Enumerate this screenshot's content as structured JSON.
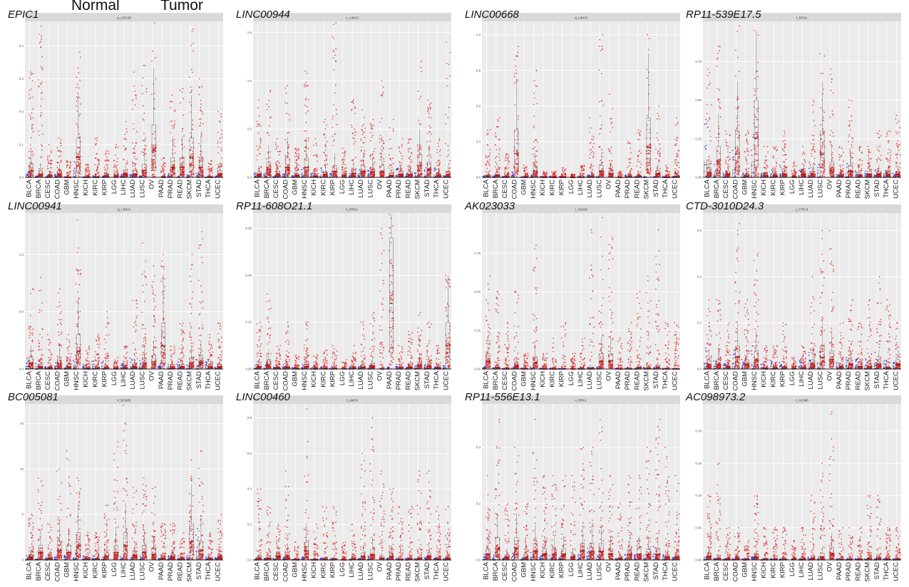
{
  "legend": {
    "normal_label": "Normal",
    "tumor_label": "Tumor",
    "normal_color": "#2222cc",
    "tumor_color": "#dd1111"
  },
  "cancers": [
    "BLCA",
    "BRCA",
    "CESC",
    "COAD",
    "GBM",
    "HNSC",
    "KICH",
    "KIRC",
    "KIRP",
    "LGG",
    "LIHC",
    "LUAD",
    "LUSC",
    "OV",
    "PAAD",
    "PRAD",
    "READ",
    "SKCM",
    "STAD",
    "THCA",
    "UCEC"
  ],
  "chart_data": [
    {
      "type": "scatter",
      "gene": "EPIC1",
      "strip": "a_LOC28",
      "ylim": [
        0,
        0.47
      ],
      "yticks": [
        {
          "v": 0,
          "t": "0.0"
        },
        {
          "v": 0.1,
          "t": "0.1"
        },
        {
          "v": 0.2,
          "t": "0.2"
        },
        {
          "v": 0.3,
          "t": "0.3"
        },
        {
          "v": 0.4,
          "t": "0.4"
        }
      ],
      "tumor_median": [
        0.02,
        0.01,
        0.005,
        0.01,
        0,
        0.06,
        0.001,
        0.001,
        0.005,
        0.005,
        0.01,
        0.01,
        0.02,
        0.08,
        0.001,
        0.03,
        0.03,
        0.06,
        0.03,
        0.001,
        0.01
      ],
      "tumor_max": [
        0.32,
        0.46,
        0.1,
        0.12,
        0.05,
        0.38,
        0.04,
        0.12,
        0.08,
        0.1,
        0.17,
        0.32,
        0.34,
        0.47,
        0.06,
        0.25,
        0.27,
        0.45,
        0.3,
        0.05,
        0.2
      ],
      "normal_max": [
        0.02,
        0.005,
        0.005,
        0.01,
        0.002,
        0.05,
        0.003,
        0.005,
        0.005,
        0,
        0.01,
        0.01,
        0.005,
        0,
        0,
        0.02,
        0.005,
        0.01,
        0.02,
        0.005,
        0.005
      ]
    },
    {
      "type": "scatter",
      "gene": "LINC00944",
      "strip": "c_LINC0",
      "ylim": [
        0,
        1.6
      ],
      "yticks": [
        {
          "v": 0,
          "t": "0.0"
        },
        {
          "v": 0.5,
          "t": "0.5"
        },
        {
          "v": 1.0,
          "t": "1.0"
        },
        {
          "v": 1.5,
          "t": "1.5"
        }
      ],
      "tumor_median": [
        0.03,
        0.08,
        0.03,
        0.1,
        0.02,
        0.1,
        0.01,
        0.03,
        0.06,
        0.02,
        0.04,
        0.06,
        0.05,
        0.06,
        0.02,
        0.03,
        0.03,
        0.12,
        0.08,
        0.02,
        0.03
      ],
      "tumor_max": [
        0.8,
        0.9,
        0.4,
        0.95,
        0.3,
        1.1,
        0.4,
        0.6,
        1.6,
        0.3,
        0.8,
        0.7,
        0.6,
        1.0,
        0.6,
        0.4,
        0.4,
        1.2,
        0.8,
        0.4,
        1.4
      ],
      "normal_max": [
        0.05,
        0.05,
        0.02,
        0.1,
        0.02,
        0.1,
        0.05,
        0.1,
        0.1,
        0,
        0.05,
        0.1,
        0.1,
        0,
        0.01,
        0.1,
        0.05,
        0.05,
        0.1,
        0.1,
        0.02
      ]
    },
    {
      "type": "scatter",
      "gene": "LINC00668",
      "strip": "d_LINC0",
      "ylim": [
        0,
        1.3
      ],
      "yticks": [
        {
          "v": 0,
          "t": "0.0"
        },
        {
          "v": 0.3,
          "t": "0.3"
        },
        {
          "v": 0.6,
          "t": "0.6"
        },
        {
          "v": 0.9,
          "t": "0.9"
        },
        {
          "v": 1.2,
          "t": "1.2"
        }
      ],
      "tumor_median": [
        0.01,
        0.02,
        0.01,
        0.2,
        0.005,
        0.05,
        0.001,
        0.001,
        0.001,
        0.001,
        0.002,
        0.01,
        0.05,
        0.03,
        0.001,
        0.01,
        0.01,
        0.25,
        0.03,
        0.001,
        0.01
      ],
      "tumor_max": [
        0.4,
        0.5,
        0.2,
        1.1,
        0.1,
        0.9,
        0.05,
        0.05,
        0.08,
        0.03,
        0.1,
        0.5,
        1.2,
        0.7,
        0.05,
        0.3,
        0.4,
        1.2,
        0.6,
        0.1,
        0.5
      ],
      "normal_max": [
        0.02,
        0.02,
        0.01,
        0.05,
        0.01,
        0.03,
        0.01,
        0.01,
        0.01,
        0,
        0.01,
        0.02,
        0.02,
        0,
        0,
        0.02,
        0.02,
        0.01,
        0.03,
        0.01,
        0.01
      ]
    },
    {
      "type": "scatter",
      "gene": "RP11-539E17.5",
      "strip": "f_RP11-",
      "ylim": [
        0,
        1.0
      ],
      "yticks": [
        {
          "v": 0,
          "t": "0.00"
        },
        {
          "v": 0.25,
          "t": "0.25"
        },
        {
          "v": 0.5,
          "t": "0.50"
        },
        {
          "v": 0.75,
          "t": "0.75"
        }
      ],
      "tumor_median": [
        0.03,
        0.1,
        0.02,
        0.15,
        0.01,
        0.25,
        0.01,
        0.01,
        0.02,
        0.005,
        0.02,
        0.02,
        0.15,
        0.05,
        0.01,
        0.04,
        0.01,
        0.02,
        0.02,
        0.02,
        0.02
      ],
      "tumor_max": [
        0.7,
        0.85,
        0.3,
        0.98,
        0.3,
        0.95,
        0.2,
        0.2,
        0.3,
        0.1,
        0.2,
        0.5,
        0.8,
        0.7,
        0.2,
        0.5,
        0.2,
        0.2,
        0.3,
        0.3,
        0.4
      ],
      "normal_max": [
        0.4,
        0.1,
        0.05,
        0.2,
        0.05,
        0.4,
        0.05,
        0.05,
        0.1,
        0,
        0.05,
        0.1,
        0.1,
        0,
        0.02,
        0.1,
        0.05,
        0.05,
        0.05,
        0.05,
        0.05
      ]
    },
    {
      "type": "scatter",
      "gene": "LINC00941",
      "strip": "g_LINC0",
      "ylim": [
        0,
        1.35
      ],
      "yticks": [
        {
          "v": 0,
          "t": "0.0"
        },
        {
          "v": 0.5,
          "t": "0.5"
        },
        {
          "v": 1.0,
          "t": "1.0"
        }
      ],
      "tumor_median": [
        0.05,
        0.02,
        0.01,
        0.05,
        0.02,
        0.15,
        0.005,
        0.01,
        0.01,
        0.005,
        0.01,
        0.02,
        0.05,
        0.06,
        0.2,
        0.01,
        0.02,
        0.05,
        0.06,
        0.02,
        0.02
      ],
      "tumor_max": [
        0.7,
        0.8,
        0.3,
        0.7,
        0.3,
        1.3,
        0.2,
        0.3,
        0.5,
        0.1,
        0.2,
        0.6,
        1.1,
        0.9,
        1.0,
        0.2,
        0.4,
        1.0,
        1.2,
        0.3,
        0.4
      ],
      "normal_max": [
        0.1,
        0.05,
        0.03,
        0.1,
        0.03,
        0.15,
        0.05,
        0.08,
        0.1,
        0,
        0.05,
        0.1,
        0.1,
        0,
        0.05,
        0.05,
        0.1,
        0.05,
        0.1,
        0.1,
        0.03
      ]
    },
    {
      "type": "scatter",
      "gene": "RP11-608O21.1",
      "strip": "h_RP11-",
      "ylim": [
        0,
        0.33
      ],
      "yticks": [
        {
          "v": 0,
          "t": "0.00"
        },
        {
          "v": 0.1,
          "t": "0.10"
        },
        {
          "v": 0.2,
          "t": "0.20"
        },
        {
          "v": 0.3,
          "t": "0.30"
        }
      ],
      "tumor_median": [
        0.005,
        0.01,
        0.002,
        0.004,
        0.001,
        0.005,
        0.001,
        0.001,
        0.001,
        0.001,
        0.002,
        0.004,
        0.006,
        0.001,
        0.14,
        0.002,
        0.004,
        0.008,
        0.006,
        0.002,
        0.05
      ],
      "tumor_max": [
        0.1,
        0.16,
        0.05,
        0.1,
        0.03,
        0.1,
        0.03,
        0.04,
        0.05,
        0.02,
        0.05,
        0.1,
        0.12,
        0.3,
        0.33,
        0.05,
        0.08,
        0.12,
        0.1,
        0.05,
        0.2
      ],
      "normal_max": [
        0.01,
        0.01,
        0.005,
        0.01,
        0.005,
        0.01,
        0.005,
        0.005,
        0.005,
        0,
        0.005,
        0.01,
        0.01,
        0,
        0.005,
        0.01,
        0.005,
        0.01,
        0.01,
        0.005,
        0.01
      ]
    },
    {
      "type": "scatter",
      "gene": "AK023033",
      "strip": "i_AK023",
      "ylim": [
        0,
        1.0
      ],
      "yticks": [
        {
          "v": 0,
          "t": "0.00"
        },
        {
          "v": 0.25,
          "t": "0.25"
        },
        {
          "v": 0.5,
          "t": "0.50"
        },
        {
          "v": 0.75,
          "t": "0.75"
        }
      ],
      "tumor_median": [
        0.05,
        0.01,
        0.002,
        0.02,
        0.002,
        0.04,
        0.001,
        0.001,
        0.002,
        0.001,
        0.002,
        0.005,
        0.05,
        0.05,
        0.001,
        0.002,
        0.01,
        0.005,
        0.01,
        0.002,
        0.002
      ],
      "tumor_max": [
        0.6,
        0.5,
        0.3,
        0.5,
        0.1,
        0.8,
        0.1,
        0.2,
        0.3,
        0.1,
        0.2,
        0.9,
        0.98,
        0.85,
        0.2,
        0.3,
        0.5,
        0.6,
        0.9,
        0.3,
        0.3
      ],
      "normal_max": [
        0.02,
        0.01,
        0.005,
        0.01,
        0.005,
        0.02,
        0.005,
        0.005,
        0.005,
        0,
        0.005,
        0.01,
        0.02,
        0,
        0.005,
        0.01,
        0.005,
        0.01,
        0.01,
        0.005,
        0.005
      ]
    },
    {
      "type": "scatter",
      "gene": "CTD-3010D24.3",
      "strip": "j_CTD-3",
      "ylim": [
        0,
        0.67
      ],
      "yticks": [
        {
          "v": 0,
          "t": "0.0"
        },
        {
          "v": 0.2,
          "t": "0.2"
        },
        {
          "v": 0.4,
          "t": "0.4"
        },
        {
          "v": 0.6,
          "t": "0.6"
        }
      ],
      "tumor_median": [
        0.02,
        0.02,
        0.01,
        0.05,
        0.02,
        0.04,
        0.002,
        0.005,
        0.005,
        0.002,
        0.005,
        0.02,
        0.05,
        0.04,
        0.01,
        0.02,
        0.01,
        0.01,
        0.02,
        0.005,
        0.02
      ],
      "tumor_max": [
        0.3,
        0.3,
        0.2,
        0.63,
        0.3,
        0.5,
        0.1,
        0.1,
        0.2,
        0.05,
        0.1,
        0.4,
        0.6,
        0.6,
        0.2,
        0.3,
        0.2,
        0.3,
        0.4,
        0.3,
        0.2
      ],
      "normal_max": [
        0.1,
        0.05,
        0.03,
        0.1,
        0.05,
        0.1,
        0.03,
        0.05,
        0.05,
        0,
        0.05,
        0.1,
        0.1,
        0,
        0.03,
        0.05,
        0.05,
        0.05,
        0.1,
        0.05,
        0.03
      ]
    },
    {
      "type": "scatter",
      "gene": "BC005081",
      "strip": "k_BC005",
      "ylim": [
        0,
        17
      ],
      "yticks": [
        {
          "v": 0,
          "t": "0"
        },
        {
          "v": 5,
          "t": "5"
        },
        {
          "v": 10,
          "t": "10"
        },
        {
          "v": 15,
          "t": "15"
        }
      ],
      "tumor_median": [
        0.3,
        0.8,
        0.2,
        1.0,
        0.8,
        1.5,
        0.1,
        0.1,
        0.4,
        0.8,
        1.5,
        0.5,
        0.8,
        0.6,
        0.2,
        0.3,
        0.1,
        2.0,
        1.0,
        0.1,
        0.3
      ],
      "tumor_max": [
        5,
        9,
        4,
        10,
        12,
        9,
        3,
        3,
        6,
        13,
        17,
        8,
        9,
        8,
        4,
        4,
        3,
        11,
        12,
        3,
        5
      ],
      "normal_max": [
        0.5,
        0.5,
        0.3,
        0.5,
        0.5,
        1.0,
        0.5,
        0.5,
        0.5,
        0,
        0.5,
        0.3,
        0.5,
        0,
        0.3,
        0.5,
        0.5,
        0.5,
        3.5,
        0.5,
        0.3
      ]
    },
    {
      "type": "scatter",
      "gene": "LINC00460",
      "strip": "l_LINC0",
      "ylim": [
        0,
        0.87
      ],
      "yticks": [
        {
          "v": 0,
          "t": "0.0"
        },
        {
          "v": 0.2,
          "t": "0.2"
        },
        {
          "v": 0.4,
          "t": "0.4"
        },
        {
          "v": 0.6,
          "t": "0.6"
        },
        {
          "v": 0.8,
          "t": "0.8"
        }
      ],
      "tumor_median": [
        0.01,
        0.01,
        0.02,
        0.02,
        0.002,
        0.05,
        0.002,
        0.005,
        0.005,
        0.001,
        0.005,
        0.02,
        0.03,
        0.01,
        0.02,
        0.002,
        0.005,
        0.01,
        0.02,
        0.005,
        0.01
      ],
      "tumor_max": [
        0.4,
        0.3,
        0.2,
        0.5,
        0.1,
        0.85,
        0.2,
        0.3,
        0.3,
        0.1,
        0.2,
        0.6,
        0.8,
        0.5,
        0.4,
        0.3,
        0.3,
        0.5,
        0.5,
        0.3,
        0.3
      ],
      "normal_max": [
        0.01,
        0.01,
        0.01,
        0.02,
        0.005,
        0.02,
        0.005,
        0.01,
        0.01,
        0,
        0.01,
        0.01,
        0.02,
        0,
        0.01,
        0.01,
        0.01,
        0.01,
        0.02,
        0.01,
        0.01
      ]
    },
    {
      "type": "scatter",
      "gene": "RP11-556E13.1",
      "strip": "n_RP11-",
      "ylim": [
        0,
        0.55
      ],
      "yticks": [
        {
          "v": 0,
          "t": "0.0"
        },
        {
          "v": 0.2,
          "t": "0.2"
        },
        {
          "v": 0.4,
          "t": "0.4"
        }
      ],
      "tumor_median": [
        0.02,
        0.04,
        0.01,
        0.04,
        0.01,
        0.03,
        0.02,
        0.02,
        0.02,
        0.01,
        0.03,
        0.03,
        0.03,
        0.02,
        0.005,
        0.02,
        0.02,
        0.02,
        0.02,
        0.01,
        0.01
      ],
      "tumor_max": [
        0.3,
        0.5,
        0.2,
        0.4,
        0.2,
        0.5,
        0.3,
        0.3,
        0.3,
        0.3,
        0.4,
        0.4,
        0.5,
        0.3,
        0.2,
        0.3,
        0.3,
        0.4,
        0.5,
        0.4,
        0.3
      ],
      "normal_max": [
        0.02,
        0.02,
        0.01,
        0.03,
        0.01,
        0.03,
        0.02,
        0.02,
        0.02,
        0,
        0.02,
        0.05,
        0.05,
        0,
        0.01,
        0.02,
        0.02,
        0.02,
        0.05,
        0.02,
        0.01
      ]
    },
    {
      "type": "scatter",
      "gene": "AC098973.2",
      "strip": "t_AC098",
      "ylim": [
        0,
        0.24
      ],
      "yticks": [
        {
          "v": 0,
          "t": "0.00"
        },
        {
          "v": 0.05,
          "t": "0.05"
        },
        {
          "v": 0.1,
          "t": "0.10"
        },
        {
          "v": 0.15,
          "t": "0.15"
        },
        {
          "v": 0.2,
          "t": "0.20"
        }
      ],
      "tumor_median": [
        0.005,
        0.002,
        0.001,
        0.002,
        0.001,
        0.004,
        0.001,
        0.001,
        0.001,
        0.001,
        0.001,
        0.002,
        0.005,
        0.01,
        0.001,
        0.001,
        0.001,
        0.002,
        0.002,
        0.001,
        0.001
      ],
      "tumor_max": [
        0.1,
        0.15,
        0.05,
        0.05,
        0.03,
        0.1,
        0.05,
        0.05,
        0.05,
        0.03,
        0.05,
        0.1,
        0.15,
        0.23,
        0.05,
        0.05,
        0.05,
        0.1,
        0.1,
        0.05,
        0.05
      ],
      "normal_max": [
        0.005,
        0.002,
        0.002,
        0.002,
        0.002,
        0.005,
        0.002,
        0.002,
        0.002,
        0,
        0.002,
        0.005,
        0.005,
        0,
        0.002,
        0.002,
        0.002,
        0.002,
        0.005,
        0.002,
        0.002
      ]
    }
  ]
}
